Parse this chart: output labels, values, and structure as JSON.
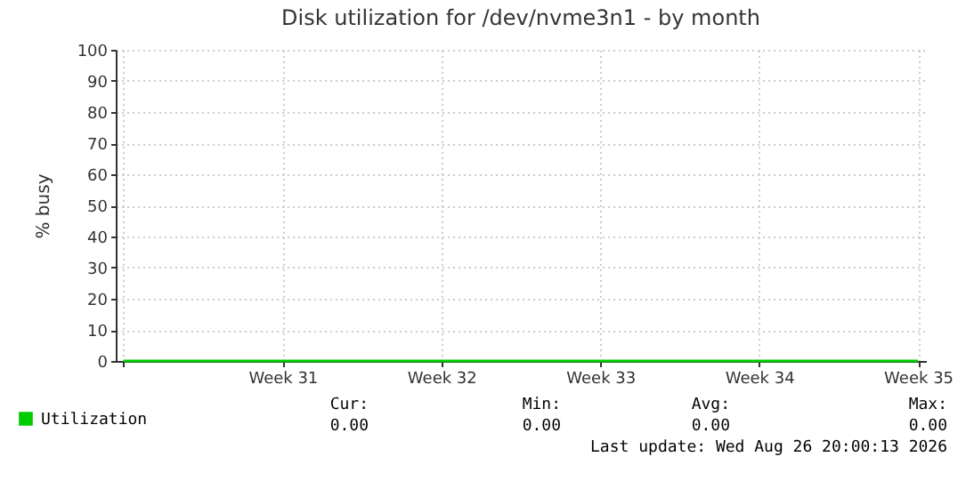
{
  "chart_data": {
    "type": "line",
    "title": "Disk utilization for /dev/nvme3n1 - by month",
    "ylabel": "% busy",
    "categories": [
      null,
      "Week 31",
      "Week 32",
      "Week 33",
      "Week 34",
      "Week 35"
    ],
    "series": [
      {
        "name": "Utilization",
        "color": "#00cc00",
        "values": [
          0,
          0,
          0,
          0,
          0,
          0
        ]
      }
    ],
    "ylim": [
      0,
      100
    ],
    "yticks": [
      0,
      10,
      20,
      30,
      40,
      50,
      60,
      70,
      80,
      90,
      100
    ],
    "grid": true,
    "legend": "bottom",
    "marker": "none",
    "line_style": "solid",
    "annotations": [
      "Cur:",
      "Min:",
      "Avg:",
      "Max:",
      "0.00",
      "0.00",
      "0.00",
      "0.00",
      "Last update: Wed Aug 26 20:00:13 2026"
    ]
  }
}
